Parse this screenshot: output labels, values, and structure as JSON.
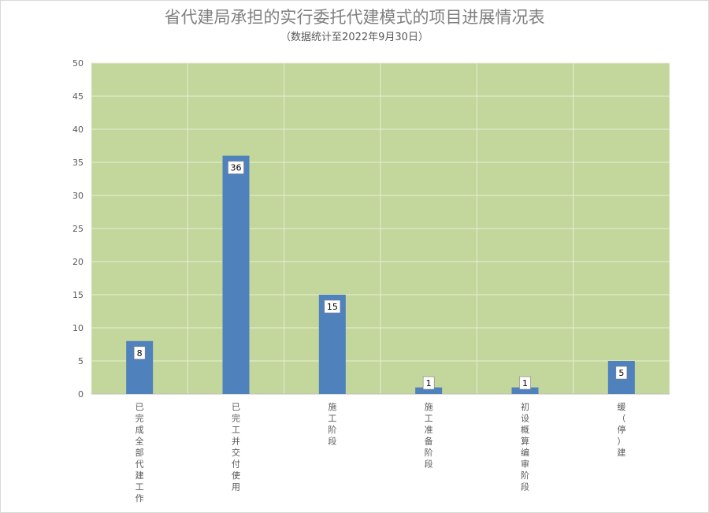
{
  "chart_data": {
    "type": "bar",
    "title": "省代建局承担的实行委托代建模式的项目进展情况表",
    "subtitle": "（数据统计至2022年9月30日）",
    "categories": [
      "已完成全部代建工作",
      "已完工并交付使用",
      "施工阶段",
      "施工准备阶段",
      "初设概算编审阶段",
      "缓（停）建"
    ],
    "values": [
      8,
      36,
      15,
      1,
      1,
      5
    ],
    "ylim": [
      0,
      50
    ],
    "yticks": [
      0,
      5,
      10,
      15,
      20,
      25,
      30,
      35,
      40,
      45,
      50
    ],
    "xlabel": "",
    "ylabel": "",
    "grid": true,
    "legend": "none",
    "colors": {
      "bar": "#4f81bd",
      "plot_background": "#c3d69b",
      "gridline": "#e8edd9",
      "text": "#595959"
    }
  }
}
